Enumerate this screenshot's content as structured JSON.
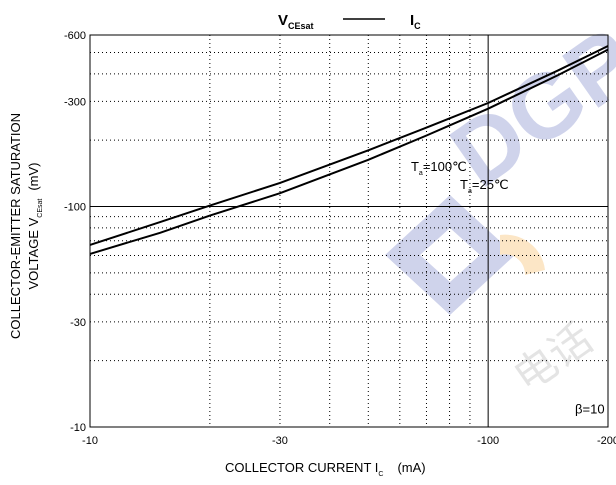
{
  "chart_data": {
    "type": "line",
    "title": {
      "left_main": "V",
      "left_sub": "CEsat",
      "right_main": "I",
      "right_sub": "C"
    },
    "xlabel": {
      "main": "COLLECTOR CURRENT   I",
      "sub": "C",
      "unit": "(mA)"
    },
    "ylabel": {
      "line1": "COLLECTOR-EMITTER SATURATION",
      "line2_main": "VOLTAGE   V",
      "line2_sub": "CEsat",
      "line2_unit": "(mV)"
    },
    "x_scale": "log",
    "y_scale": "log",
    "xlim": [
      -10,
      -200
    ],
    "ylim": [
      -10,
      -600
    ],
    "x_ticks": [
      {
        "value": -10,
        "label": "-10"
      },
      {
        "value": -30,
        "label": "-30"
      },
      {
        "value": -100,
        "label": "-100"
      },
      {
        "value": -200,
        "label": "-200"
      }
    ],
    "y_ticks": [
      {
        "value": -10,
        "label": "-10"
      },
      {
        "value": -30,
        "label": "-30"
      },
      {
        "value": -100,
        "label": "-100"
      },
      {
        "value": -300,
        "label": "-300"
      },
      {
        "value": -600,
        "label": "-600"
      }
    ],
    "grid": true,
    "series": [
      {
        "name": "Ta=100℃",
        "label_main": "T",
        "label_sub": "a",
        "label_rest": "=100℃",
        "label_at": {
          "x": -64,
          "y": -145
        },
        "points": [
          [
            -10,
            -67
          ],
          [
            -15,
            -85
          ],
          [
            -20,
            -101
          ],
          [
            -30,
            -128
          ],
          [
            -50,
            -180
          ],
          [
            -70,
            -228
          ],
          [
            -100,
            -295
          ],
          [
            -150,
            -415
          ],
          [
            -200,
            -535
          ]
        ]
      },
      {
        "name": "Ta=25℃",
        "label_main": "T",
        "label_sub": "a",
        "label_rest": "=25℃",
        "label_at": {
          "x": -85,
          "y": -120
        },
        "points": [
          [
            -10,
            -61
          ],
          [
            -15,
            -76
          ],
          [
            -20,
            -91
          ],
          [
            -30,
            -115
          ],
          [
            -50,
            -163
          ],
          [
            -70,
            -210
          ],
          [
            -100,
            -278
          ],
          [
            -150,
            -395
          ],
          [
            -200,
            -515
          ]
        ]
      }
    ],
    "annotations": [
      {
        "text": "β=10",
        "x": -180,
        "y": -12
      }
    ]
  },
  "watermark": "DGP"
}
